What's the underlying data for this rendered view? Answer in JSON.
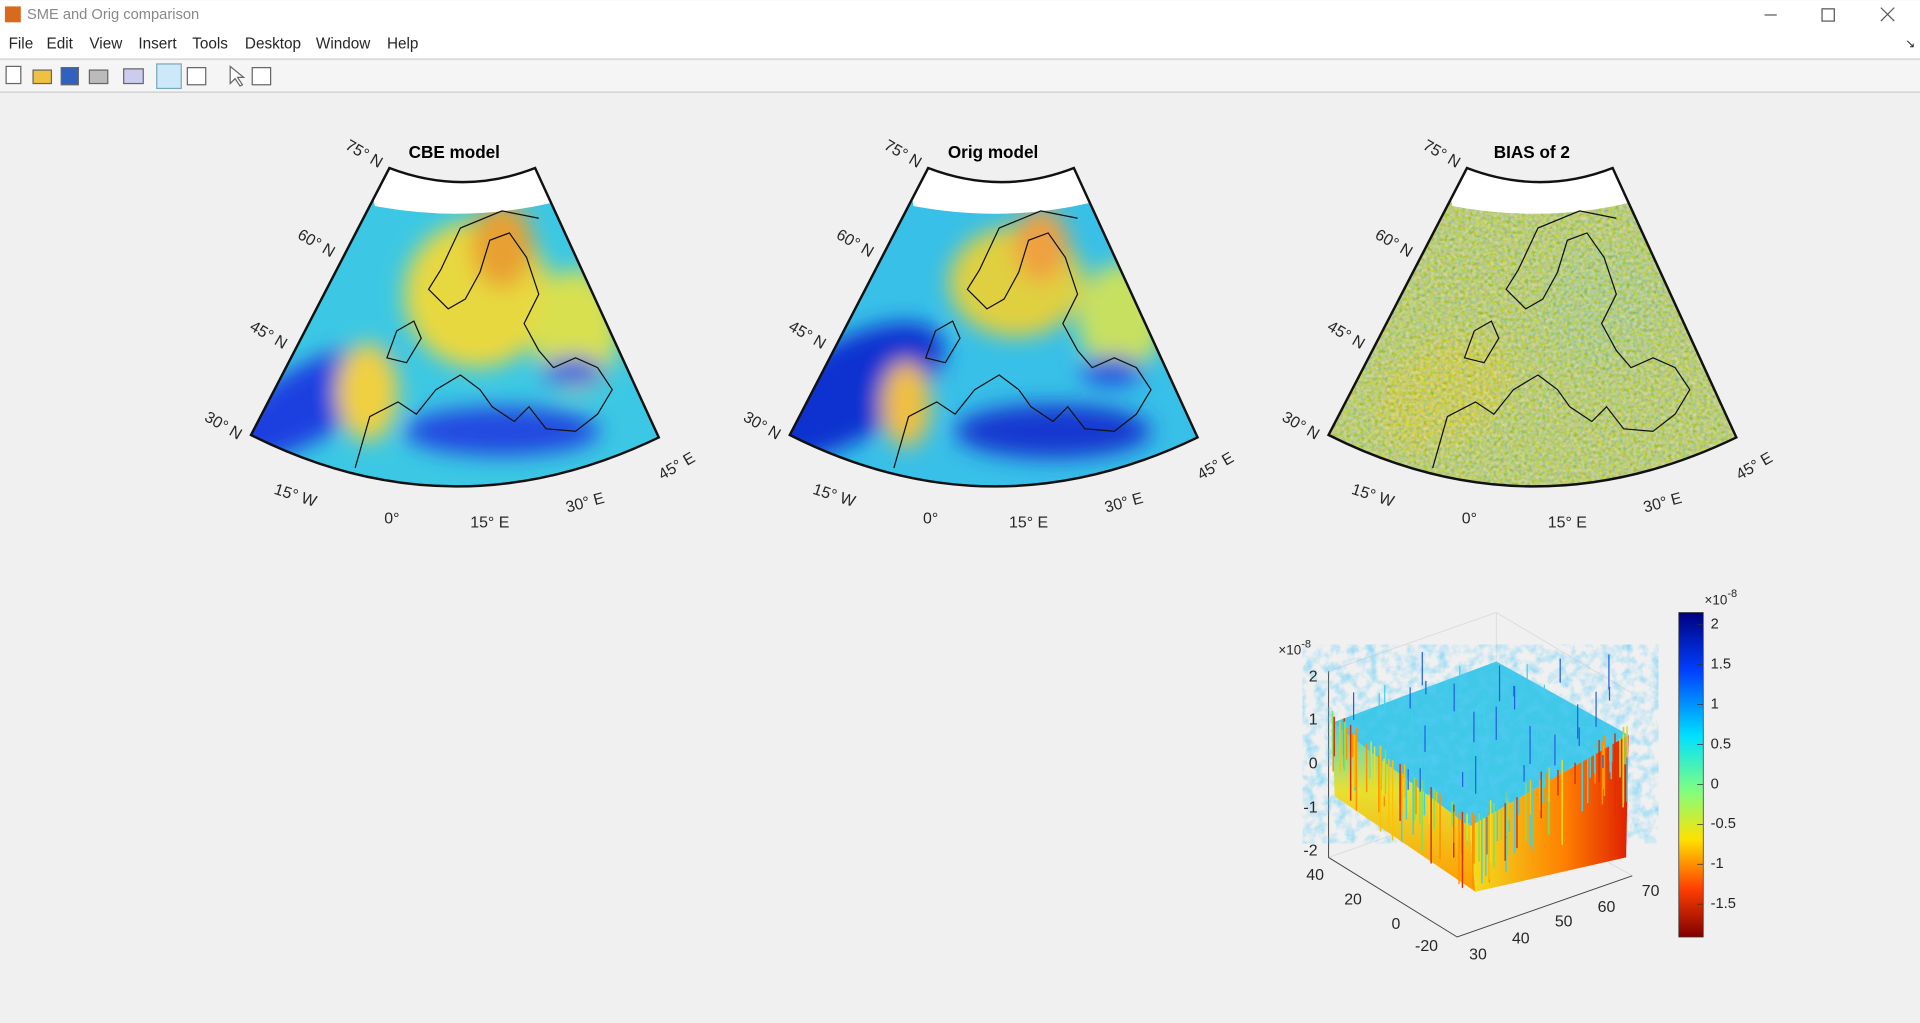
{
  "window": {
    "title": "SME and Orig comparison"
  },
  "menu": [
    "File",
    "Edit",
    "View",
    "Insert",
    "Tools",
    "Desktop",
    "Window",
    "Help"
  ],
  "maps": [
    {
      "title": "CBE model",
      "lat_labels": [
        "75° N",
        "60° N",
        "45° N",
        "30° N"
      ],
      "lon_labels": [
        "15° W",
        "0°",
        "15° E",
        "30° E",
        "45° E"
      ]
    },
    {
      "title": "Orig model",
      "lat_labels": [
        "75° N",
        "60° N",
        "45° N",
        "30° N"
      ],
      "lon_labels": [
        "15° W",
        "0°",
        "15° E",
        "30° E",
        "45° E"
      ]
    },
    {
      "title": "BIAS of 2",
      "lat_labels": [
        "75° N",
        "60° N",
        "45° N",
        "30° N"
      ],
      "lon_labels": [
        "15° W",
        "0°",
        "15° E",
        "30° E",
        "45° E"
      ]
    }
  ],
  "surface": {
    "z_exponent": {
      "base": "×10",
      "power": "-8"
    },
    "z_ticks": [
      2,
      1,
      0,
      -1,
      -2
    ],
    "y_ticks": [
      40,
      20,
      0,
      -20
    ],
    "x_ticks": [
      30,
      40,
      50,
      60,
      70
    ]
  },
  "colorbar": {
    "exponent": {
      "base": "×10",
      "power": "-8"
    },
    "ticks": [
      2,
      1.5,
      1,
      0.5,
      0,
      -0.5,
      -1,
      -1.5
    ]
  }
}
